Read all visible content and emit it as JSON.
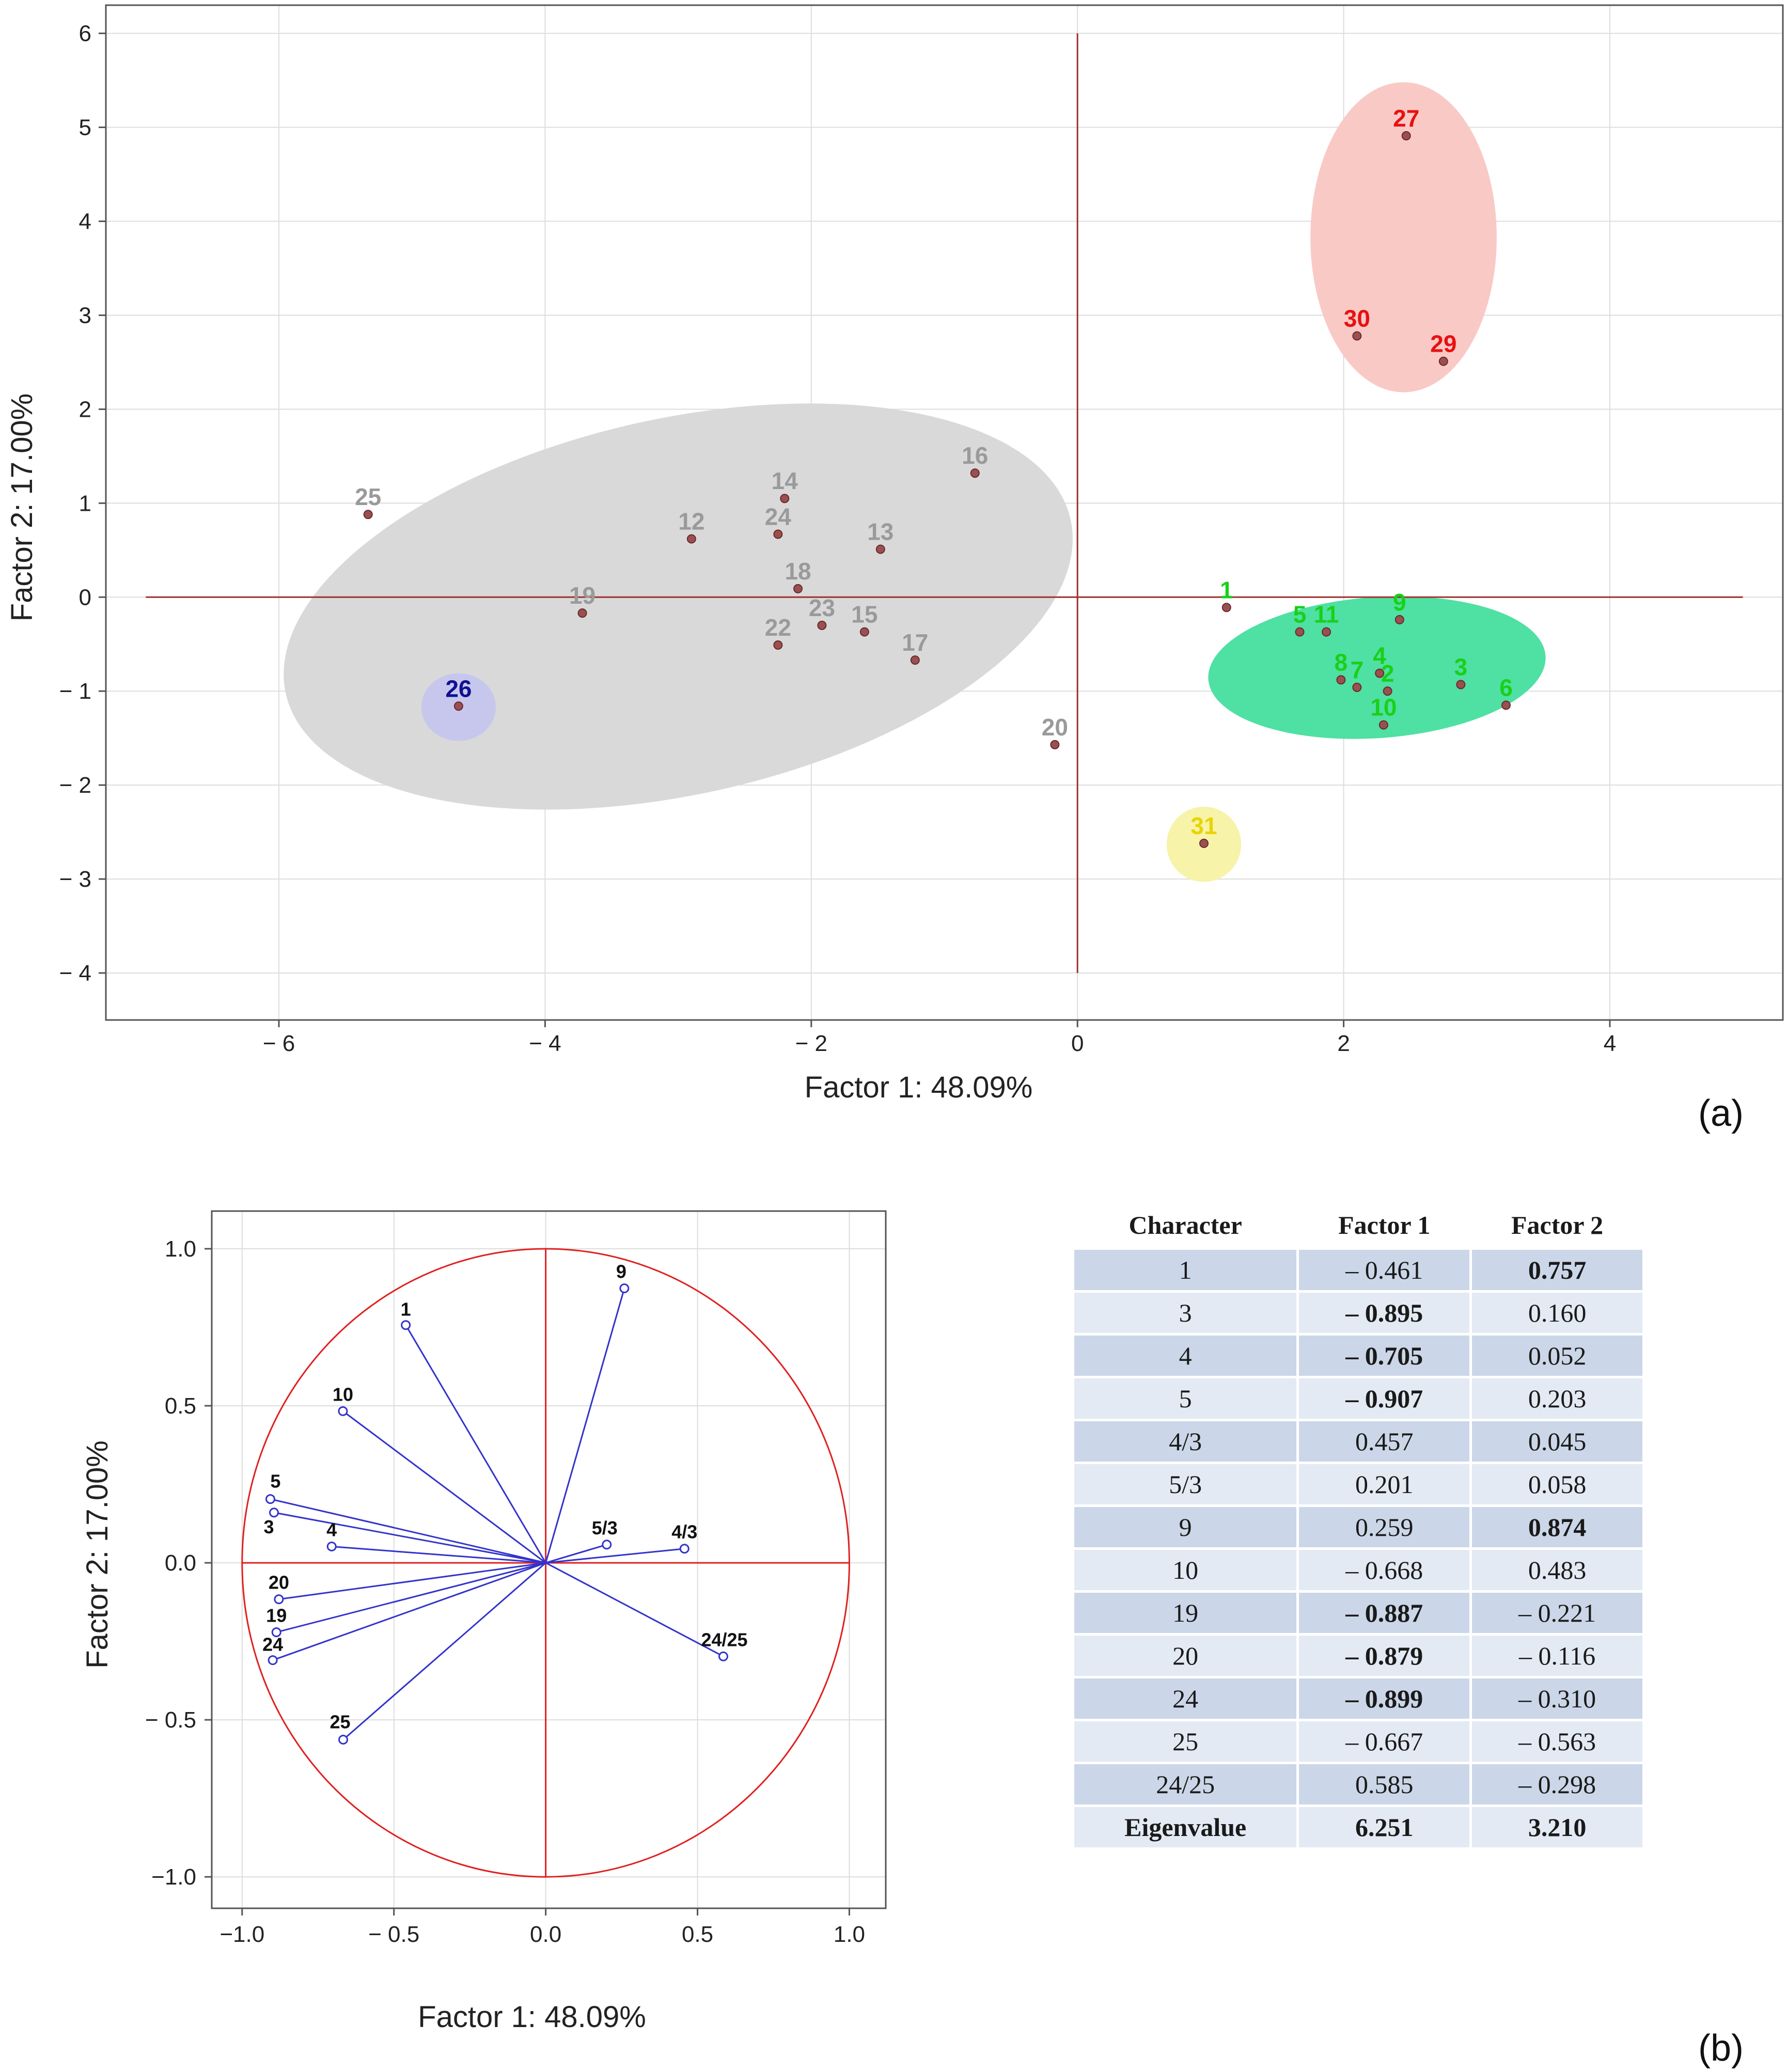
{
  "colors": {
    "axis_line": "#a03030",
    "grid": "#dddddd",
    "gray_group": "#d9d9d9",
    "gray_label": "#9a9a9a",
    "green_group": "#4fe0a3",
    "green_label": "#19d019",
    "red_group": "#f9c9c6",
    "red_label": "#e81010",
    "blue_group": "#c7c7ee",
    "blue_label": "#101090",
    "yellow_group": "#f7f3a8",
    "yellow_label": "#e8d400",
    "point_fill": "#9a5050",
    "vector_line": "#3333cc",
    "circle_line": "#e02020",
    "table_dark_row": "#cbd7e8",
    "table_light_row": "#e3eaf4"
  },
  "panel_a": {
    "letter": "(a)",
    "chart_data": {
      "type": "scatter",
      "xlabel": "Factor 1: 48.09%",
      "ylabel": "Factor 2: 17.00%",
      "xlim": [
        -7.3,
        5.3
      ],
      "ylim": [
        -4.5,
        6.3
      ],
      "xticks": [
        -6,
        -4,
        -2,
        0,
        2,
        4
      ],
      "yticks": [
        6,
        5,
        4,
        3,
        2,
        1,
        0,
        -1,
        -2,
        -3,
        -4
      ],
      "x_tick_labels": [
        "− 6",
        "− 4",
        "− 2",
        "0",
        "2",
        "4"
      ],
      "y_tick_labels": [
        "6",
        "5",
        "4",
        "3",
        "2",
        "1",
        "0",
        "− 1",
        "− 2",
        "− 3",
        "− 4"
      ],
      "reference_lines": {
        "horizontal_y": 0,
        "horizontal_x_range": [
          -7,
          5
        ],
        "vertical_x": 0,
        "vertical_y_range": [
          -4,
          6
        ]
      },
      "groups": [
        {
          "name": "gray",
          "ellipse": {
            "cx": -3.0,
            "cy": -0.1,
            "rx": 3.02,
            "ry": 2.0,
            "angle_deg": -12.5
          }
        },
        {
          "name": "green",
          "ellipse": {
            "cx": 2.25,
            "cy": -0.75,
            "rx": 1.27,
            "ry": 0.75,
            "angle_deg": -4
          }
        },
        {
          "name": "red",
          "ellipse": {
            "cx": 2.45,
            "cy": 3.83,
            "rx": 0.7,
            "ry": 1.65,
            "angle_deg": 0
          }
        },
        {
          "name": "blue",
          "ellipse": {
            "cx": -4.65,
            "cy": -1.17,
            "rx": 0.28,
            "ry": 0.36,
            "angle_deg": 0
          }
        },
        {
          "name": "yellow",
          "ellipse": {
            "cx": 0.95,
            "cy": -2.63,
            "rx": 0.28,
            "ry": 0.4,
            "angle_deg": 0
          }
        }
      ],
      "series": [
        {
          "name": "gray",
          "points": [
            {
              "label": "25",
              "x": -5.33,
              "y": 0.88
            },
            {
              "label": "19",
              "x": -3.72,
              "y": -0.17
            },
            {
              "label": "12",
              "x": -2.9,
              "y": 0.62
            },
            {
              "label": "14",
              "x": -2.2,
              "y": 1.05
            },
            {
              "label": "24",
              "x": -2.25,
              "y": 0.67
            },
            {
              "label": "18",
              "x": -2.1,
              "y": 0.09
            },
            {
              "label": "22",
              "x": -2.25,
              "y": -0.51
            },
            {
              "label": "23",
              "x": -1.92,
              "y": -0.3
            },
            {
              "label": "15",
              "x": -1.6,
              "y": -0.37
            },
            {
              "label": "13",
              "x": -1.48,
              "y": 0.51
            },
            {
              "label": "17",
              "x": -1.22,
              "y": -0.67
            },
            {
              "label": "16",
              "x": -0.77,
              "y": 1.32
            },
            {
              "label": "20",
              "x": -0.17,
              "y": -1.57
            }
          ]
        },
        {
          "name": "green",
          "points": [
            {
              "label": "1",
              "x": 1.12,
              "y": -0.11
            },
            {
              "label": "5",
              "x": 1.67,
              "y": -0.37
            },
            {
              "label": "11",
              "x": 1.87,
              "y": -0.37
            },
            {
              "label": "9",
              "x": 2.42,
              "y": -0.24
            },
            {
              "label": "8",
              "x": 1.98,
              "y": -0.88
            },
            {
              "label": "7",
              "x": 2.1,
              "y": -0.96
            },
            {
              "label": "4",
              "x": 2.27,
              "y": -0.81
            },
            {
              "label": "2",
              "x": 2.33,
              "y": -1.0
            },
            {
              "label": "10",
              "x": 2.3,
              "y": -1.36
            },
            {
              "label": "3",
              "x": 2.88,
              "y": -0.93
            },
            {
              "label": "6",
              "x": 3.22,
              "y": -1.15
            }
          ]
        },
        {
          "name": "red",
          "points": [
            {
              "label": "27",
              "x": 2.47,
              "y": 4.91
            },
            {
              "label": "30",
              "x": 2.1,
              "y": 2.78
            },
            {
              "label": "29",
              "x": 2.75,
              "y": 2.51
            }
          ]
        },
        {
          "name": "blue",
          "points": [
            {
              "label": "26",
              "x": -4.65,
              "y": -1.16
            }
          ]
        },
        {
          "name": "yellow",
          "points": [
            {
              "label": "31",
              "x": 0.95,
              "y": -2.62
            }
          ]
        }
      ]
    }
  },
  "panel_b": {
    "letter": "(b)",
    "chart_data": {
      "type": "scatter",
      "subtype": "correlation-circle",
      "xlabel": "Factor 1: 48.09%",
      "ylabel": "Factor 2: 17.00%",
      "xlim": [
        -1.1,
        1.12
      ],
      "ylim": [
        -1.1,
        1.12
      ],
      "xticks": [
        -1.0,
        -0.5,
        0.0,
        0.5,
        1.0
      ],
      "yticks": [
        1.0,
        0.5,
        0.0,
        -0.5,
        -1.0
      ],
      "x_tick_labels": [
        "−1.0",
        "− 0.5",
        "0.0",
        "0.5",
        "1.0"
      ],
      "y_tick_labels": [
        "1.0",
        "0.5",
        "0.0",
        "− 0.5",
        "−1.0"
      ],
      "unit_circle_radius": 1.0,
      "vectors": [
        {
          "label": "1",
          "x": -0.461,
          "y": 0.757
        },
        {
          "label": "3",
          "x": -0.895,
          "y": 0.16
        },
        {
          "label": "4",
          "x": -0.705,
          "y": 0.052
        },
        {
          "label": "5",
          "x": -0.907,
          "y": 0.203
        },
        {
          "label": "4/3",
          "x": 0.457,
          "y": 0.045
        },
        {
          "label": "5/3",
          "x": 0.201,
          "y": 0.058
        },
        {
          "label": "9",
          "x": 0.259,
          "y": 0.874
        },
        {
          "label": "10",
          "x": -0.668,
          "y": 0.483
        },
        {
          "label": "19",
          "x": -0.887,
          "y": -0.221
        },
        {
          "label": "20",
          "x": -0.879,
          "y": -0.116
        },
        {
          "label": "24",
          "x": -0.899,
          "y": -0.31
        },
        {
          "label": "25",
          "x": -0.667,
          "y": -0.563
        },
        {
          "label": "24/25",
          "x": 0.585,
          "y": -0.298
        }
      ]
    },
    "table": {
      "headers": [
        "Character",
        "Factor 1",
        "Factor 2"
      ],
      "rows": [
        {
          "character": "1",
          "factor1": "– 0.461",
          "factor2": "0.757",
          "bold1": false,
          "bold2": true
        },
        {
          "character": "3",
          "factor1": "– 0.895",
          "factor2": "0.160",
          "bold1": true,
          "bold2": false
        },
        {
          "character": "4",
          "factor1": "– 0.705",
          "factor2": "0.052",
          "bold1": true,
          "bold2": false
        },
        {
          "character": "5",
          "factor1": "– 0.907",
          "factor2": "0.203",
          "bold1": true,
          "bold2": false
        },
        {
          "character": "4/3",
          "factor1": "0.457",
          "factor2": "0.045",
          "bold1": false,
          "bold2": false
        },
        {
          "character": "5/3",
          "factor1": "0.201",
          "factor2": "0.058",
          "bold1": false,
          "bold2": false
        },
        {
          "character": "9",
          "factor1": "0.259",
          "factor2": "0.874",
          "bold1": false,
          "bold2": true
        },
        {
          "character": "10",
          "factor1": "– 0.668",
          "factor2": "0.483",
          "bold1": false,
          "bold2": false
        },
        {
          "character": "19",
          "factor1": "– 0.887",
          "factor2": "– 0.221",
          "bold1": true,
          "bold2": false
        },
        {
          "character": "20",
          "factor1": "– 0.879",
          "factor2": "– 0.116",
          "bold1": true,
          "bold2": false
        },
        {
          "character": "24",
          "factor1": "– 0.899",
          "factor2": "– 0.310",
          "bold1": true,
          "bold2": false
        },
        {
          "character": "25",
          "factor1": "– 0.667",
          "factor2": "– 0.563",
          "bold1": false,
          "bold2": false
        },
        {
          "character": "24/25",
          "factor1": "0.585",
          "factor2": "– 0.298",
          "bold1": false,
          "bold2": false
        },
        {
          "character": "Eigenvalue",
          "factor1": "6.251",
          "factor2": "3.210",
          "bold1": true,
          "bold2": true,
          "boldc": true
        }
      ]
    }
  }
}
